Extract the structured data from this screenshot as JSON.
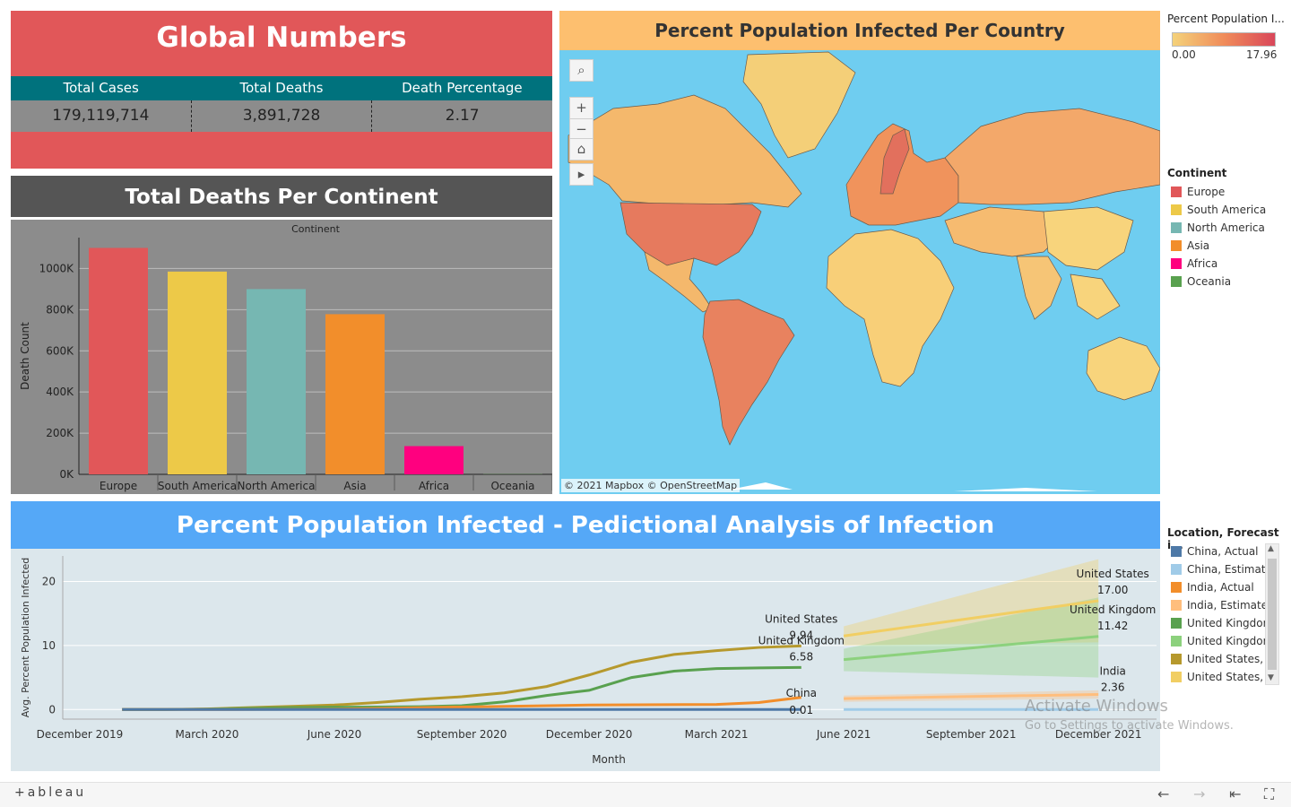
{
  "global": {
    "title": "Global Numbers",
    "headers": [
      "Total Cases",
      "Total Deaths",
      "Death Percentage"
    ],
    "values": [
      "179,119,714",
      "3,891,728",
      "2.17"
    ]
  },
  "deaths_panel": {
    "title": "Total Deaths Per Continent"
  },
  "map_panel": {
    "title": "Percent Population Infected Per Country",
    "attribution": "© 2021 Mapbox © OpenStreetMap",
    "tools": [
      "search-icon",
      "zoom-in-icon",
      "zoom-out-icon",
      "home-icon",
      "play-icon"
    ]
  },
  "legend_infected": {
    "title": "Percent Population I...",
    "min": "0.00",
    "max": "17.96",
    "colors": [
      "#f4d27a",
      "#f08c5a",
      "#d9475a"
    ]
  },
  "legend_continent": {
    "title": "Continent",
    "items": [
      {
        "label": "Europe",
        "color": "#e15759"
      },
      {
        "label": "South America",
        "color": "#edc948"
      },
      {
        "label": "North America",
        "color": "#76b7b2"
      },
      {
        "label": "Asia",
        "color": "#f28e2b"
      },
      {
        "label": "Africa",
        "color": "#ff007f"
      },
      {
        "label": "Oceania",
        "color": "#59a14f"
      }
    ]
  },
  "legend_forecast": {
    "title": "Location, Forecast i...",
    "items": [
      {
        "label": "China, Actual",
        "color": "#4e79a7"
      },
      {
        "label": "China, Estimate",
        "color": "#a0cbe8"
      },
      {
        "label": "India, Actual",
        "color": "#f28e2b"
      },
      {
        "label": "India, Estimate",
        "color": "#ffbe7d"
      },
      {
        "label": "United Kingdom",
        "color": "#59a14f"
      },
      {
        "label": "United Kingdom",
        "color": "#8cd17d"
      },
      {
        "label": "United States, A",
        "color": "#b6992d"
      },
      {
        "label": "United States, E",
        "color": "#f1ce63"
      }
    ]
  },
  "forecast_panel": {
    "title": "Percent Population Infected - Pedictional Analysis of Infection"
  },
  "watermark": {
    "line1": "Activate Windows",
    "line2": "Go to Settings to activate Windows."
  },
  "footer": {
    "logo": "+ableau"
  },
  "chart_data": [
    {
      "type": "bar",
      "title": "",
      "top_label": "Continent",
      "ylabel": "Death Count",
      "categories": [
        "Europe",
        "South America",
        "North America",
        "Asia",
        "Africa",
        "Oceania"
      ],
      "values": [
        1100000,
        985000,
        900000,
        778000,
        137000,
        1000
      ],
      "colors": [
        "#e15759",
        "#edc948",
        "#76b7b2",
        "#f28e2b",
        "#ff007f",
        "#59a14f"
      ],
      "yticks": [
        0,
        200000,
        400000,
        600000,
        800000,
        1000000
      ],
      "ytick_labels": [
        "0K",
        "200K",
        "400K",
        "600K",
        "800K",
        "1000K"
      ],
      "ylim": [
        0,
        1150000
      ],
      "grid": true
    },
    {
      "type": "line",
      "title": "",
      "xlabel": "Month",
      "ylabel": "Avg. Percent Population Infected",
      "xticks": [
        "December 2019",
        "March 2020",
        "June 2020",
        "September 2020",
        "December 2020",
        "March 2021",
        "June 2021",
        "September 2021",
        "December 2021"
      ],
      "ylim": [
        -1.5,
        24
      ],
      "yticks": [
        0,
        10,
        20
      ],
      "x_range": [
        "2019-12",
        "2022-01"
      ],
      "series": [
        {
          "name": "United States, Actual",
          "color": "#b6992d",
          "x": [
            "2020-01",
            "2020-02",
            "2020-03",
            "2020-04",
            "2020-05",
            "2020-06",
            "2020-07",
            "2020-08",
            "2020-09",
            "2020-10",
            "2020-11",
            "2020-12",
            "2021-01",
            "2021-02",
            "2021-03",
            "2021-04",
            "2021-05"
          ],
          "y": [
            0,
            0,
            0.1,
            0.3,
            0.5,
            0.7,
            1.1,
            1.6,
            2.0,
            2.6,
            3.6,
            5.4,
            7.4,
            8.6,
            9.2,
            9.7,
            9.94
          ]
        },
        {
          "name": "United Kingdom, Actual",
          "color": "#59a14f",
          "x": [
            "2020-01",
            "2020-02",
            "2020-03",
            "2020-04",
            "2020-05",
            "2020-06",
            "2020-07",
            "2020-08",
            "2020-09",
            "2020-10",
            "2020-11",
            "2020-12",
            "2021-01",
            "2021-02",
            "2021-03",
            "2021-04",
            "2021-05"
          ],
          "y": [
            0,
            0,
            0.05,
            0.2,
            0.3,
            0.35,
            0.4,
            0.45,
            0.6,
            1.2,
            2.2,
            3.0,
            5.0,
            6.0,
            6.4,
            6.5,
            6.58
          ]
        },
        {
          "name": "India, Actual",
          "color": "#f28e2b",
          "x": [
            "2020-01",
            "2020-03",
            "2020-06",
            "2020-09",
            "2020-12",
            "2021-03",
            "2021-04",
            "2021-05"
          ],
          "y": [
            0,
            0,
            0.05,
            0.4,
            0.7,
            0.8,
            1.1,
            1.9
          ]
        },
        {
          "name": "China, Actual",
          "color": "#4e79a7",
          "x": [
            "2020-01",
            "2020-06",
            "2021-01",
            "2021-05"
          ],
          "y": [
            0.01,
            0.01,
            0.01,
            0.01
          ]
        },
        {
          "name": "United States, Estimate",
          "color": "#f1ce63",
          "x": [
            "2021-06",
            "2021-12"
          ],
          "y": [
            11.5,
            17.0
          ],
          "band_low": [
            10.0,
            10.5
          ],
          "band_high": [
            13.0,
            23.5
          ]
        },
        {
          "name": "United Kingdom, Estimate",
          "color": "#8cd17d",
          "x": [
            "2021-06",
            "2021-12"
          ],
          "y": [
            7.8,
            11.42
          ],
          "band_low": [
            6.0,
            5.0
          ],
          "band_high": [
            9.5,
            17.5
          ]
        },
        {
          "name": "India, Estimate",
          "color": "#ffbe7d",
          "x": [
            "2021-06",
            "2021-12"
          ],
          "y": [
            1.7,
            2.36
          ],
          "band_low": [
            1.2,
            1.7
          ],
          "band_high": [
            2.2,
            3.0
          ]
        },
        {
          "name": "China, Estimate",
          "color": "#a0cbe8",
          "x": [
            "2021-06",
            "2021-12"
          ],
          "y": [
            0.01,
            0.01
          ],
          "band_low": [
            0,
            0
          ],
          "band_high": [
            0.1,
            0.1
          ]
        }
      ],
      "annotations": [
        {
          "name": "United States",
          "value": "9.94",
          "x": "2021-05",
          "y": 9.94
        },
        {
          "name": "United Kingdom",
          "value": "6.58",
          "x": "2021-05",
          "y": 6.58
        },
        {
          "name": "China",
          "value": "0.01",
          "x": "2021-05",
          "y": 0.01
        },
        {
          "name": "United States",
          "value": "17.00",
          "x": "2021-12",
          "y": 17.0
        },
        {
          "name": "United Kingdom",
          "value": "11.42",
          "x": "2021-12",
          "y": 11.42
        },
        {
          "name": "India",
          "value": "2.36",
          "x": "2021-12",
          "y": 2.36
        }
      ]
    }
  ]
}
